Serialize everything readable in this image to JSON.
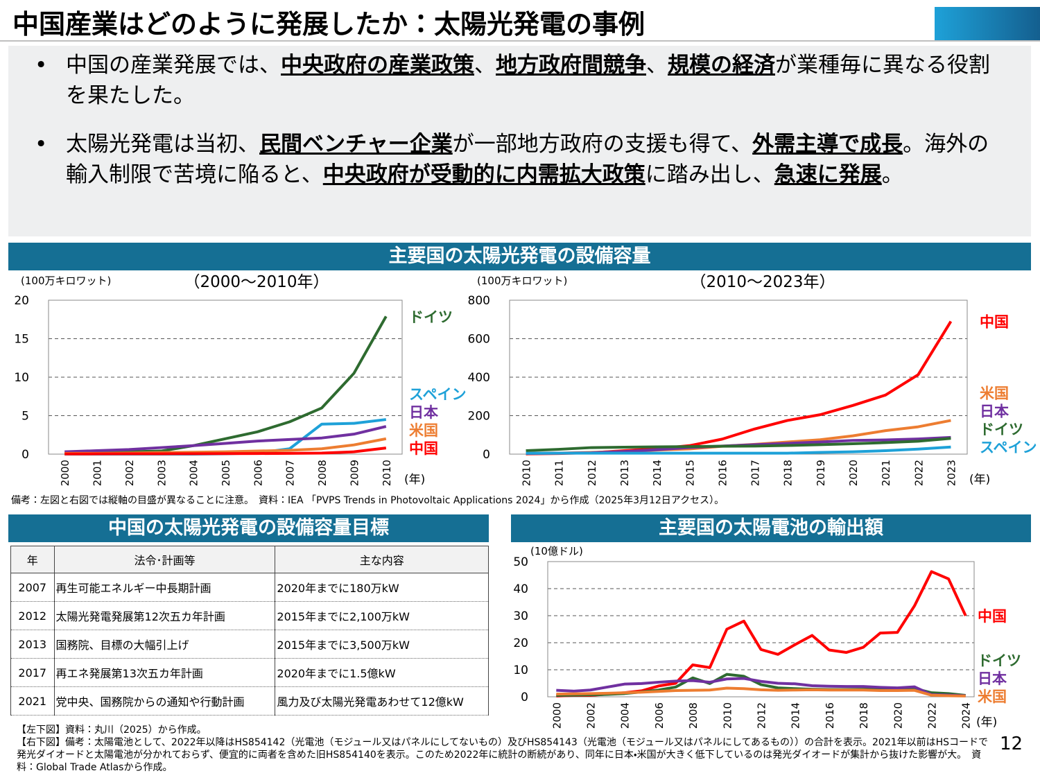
{
  "title": "中国産業はどのように発展したか：太陽光発電の事例",
  "bullets": [
    {
      "segments": [
        {
          "text": "中国の産業発展では、",
          "bold": false
        },
        {
          "text": "中央政府の産業政策",
          "bold": true
        },
        {
          "text": "、",
          "bold": false
        },
        {
          "text": "地方政府間競争",
          "bold": true
        },
        {
          "text": "、",
          "bold": false
        },
        {
          "text": "規模の経済",
          "bold": true
        },
        {
          "text": "が業種毎に異なる役割を果たした。",
          "bold": false
        }
      ]
    },
    {
      "segments": [
        {
          "text": "太陽光発電は当初、",
          "bold": false
        },
        {
          "text": "民間ベンチャー企業",
          "bold": true
        },
        {
          "text": "が一部地方政府の支援も得て、",
          "bold": false
        },
        {
          "text": "外需主導で成長",
          "bold": true
        },
        {
          "text": "。海外の輸入制限で苦境に陥ると、",
          "bold": false
        },
        {
          "text": "中央政府が受動的に内需拡大政策",
          "bold": true
        },
        {
          "text": "に踏み出し、",
          "bold": false
        },
        {
          "text": "急速に発展",
          "bold": true
        },
        {
          "text": "。",
          "bold": false
        }
      ]
    }
  ],
  "sections": [
    "主要国の太陽光発電の設備容量",
    "中国の太陽光発電の設備容量目標",
    "主要国の太陽電池の輸出額"
  ],
  "note": "備考：左図と右図では縦軸の目盛が異なることに注意。　資料：IEA 「PVPS Trends in Photovoltaic Applications 2024」から作成（2025年3月12日アクセス）。",
  "chart_data": [
    {
      "type": "line",
      "title": "（2000～2010年）",
      "unit": "(100万キロワット)",
      "x_unit": "(年)",
      "categories": [
        "2000",
        "2001",
        "2002",
        "2003",
        "2004",
        "2005",
        "2006",
        "2007",
        "2008",
        "2009",
        "2010"
      ],
      "ylim": [
        0,
        20
      ],
      "yticks": [
        0,
        5,
        10,
        15,
        20
      ],
      "grid": true,
      "series": [
        {
          "name": "ドイツ",
          "color": "#2e6b30",
          "values": [
            0.1,
            0.2,
            0.3,
            0.4,
            1.1,
            2.0,
            2.9,
            4.2,
            6.0,
            10.5,
            17.9
          ]
        },
        {
          "name": "スペイン",
          "color": "#1ea1d8",
          "values": [
            0,
            0,
            0,
            0,
            0,
            0.05,
            0.15,
            0.7,
            3.9,
            4.0,
            4.5
          ]
        },
        {
          "name": "日本",
          "color": "#7030a0",
          "values": [
            0.3,
            0.45,
            0.6,
            0.85,
            1.1,
            1.4,
            1.7,
            1.9,
            2.1,
            2.6,
            3.6
          ]
        },
        {
          "name": "米国",
          "color": "#ed7d31",
          "values": [
            0.1,
            0.1,
            0.15,
            0.2,
            0.25,
            0.3,
            0.4,
            0.5,
            0.7,
            1.2,
            2.0
          ]
        },
        {
          "name": "中国",
          "color": "#ff0000",
          "values": [
            0.02,
            0.03,
            0.04,
            0.05,
            0.06,
            0.07,
            0.08,
            0.1,
            0.14,
            0.3,
            0.8
          ]
        }
      ]
    },
    {
      "type": "line",
      "title": "（2010～2023年）",
      "unit": "(100万キロワット)",
      "x_unit": "(年)",
      "categories": [
        "2010",
        "2011",
        "2012",
        "2013",
        "2014",
        "2015",
        "2016",
        "2017",
        "2018",
        "2019",
        "2020",
        "2021",
        "2022",
        "2023"
      ],
      "ylim": [
        0,
        800
      ],
      "yticks": [
        0,
        200,
        400,
        600,
        800
      ],
      "grid": true,
      "series": [
        {
          "name": "中国",
          "color": "#ff0000",
          "values": [
            1,
            3,
            7,
            18,
            28,
            44,
            78,
            131,
            175,
            205,
            253,
            307,
            413,
            690
          ]
        },
        {
          "name": "米国",
          "color": "#ed7d31",
          "values": [
            3,
            5,
            9,
            14,
            21,
            27,
            41,
            51,
            63,
            75,
            95,
            122,
            142,
            175
          ]
        },
        {
          "name": "日本",
          "color": "#7030a0",
          "values": [
            3.6,
            5,
            6.6,
            13.6,
            23,
            34,
            42,
            49,
            56,
            63,
            71,
            74,
            79,
            87
          ]
        },
        {
          "name": "ドイツ",
          "color": "#2e6b30",
          "values": [
            18,
            25,
            34,
            36,
            38,
            39,
            41,
            42,
            45,
            49,
            54,
            60,
            67,
            82
          ]
        },
        {
          "name": "スペイン",
          "color": "#1ea1d8",
          "values": [
            4.5,
            5,
            5,
            5,
            5,
            5,
            5,
            5,
            5,
            9,
            12,
            18,
            26,
            37
          ]
        }
      ]
    },
    {
      "type": "line",
      "unit": "(10億ドル)",
      "x_unit": "(年)",
      "categories": [
        "2000",
        null,
        "2002",
        null,
        "2004",
        null,
        "2006",
        null,
        "2008",
        null,
        "2010",
        null,
        "2012",
        null,
        "2014",
        null,
        "2016",
        null,
        "2018",
        null,
        "2020",
        null,
        "2022",
        null,
        "2024"
      ],
      "ylim": [
        0,
        50
      ],
      "yticks": [
        0,
        10,
        20,
        30,
        40,
        50
      ],
      "grid": true,
      "series": [
        {
          "name": "中国",
          "color": "#ff0000",
          "values": [
            0.3,
            0.5,
            0.5,
            1,
            1.5,
            2.2,
            4,
            5,
            11.8,
            10.8,
            25,
            28,
            17.5,
            15.7,
            19.3,
            22.7,
            17.3,
            16.4,
            18.3,
            23.6,
            23.8,
            33.6,
            46.3,
            43.6,
            30
          ]
        },
        {
          "name": "ドイツ",
          "color": "#2e6b30",
          "values": [
            0.5,
            0.6,
            0.7,
            0.9,
            1.2,
            1.8,
            2.5,
            3.6,
            7,
            4.9,
            8.3,
            7.6,
            4.5,
            3.3,
            3,
            2.8,
            2.7,
            2.7,
            2.8,
            2.9,
            3,
            3.1,
            1.5,
            1.2,
            0.5
          ]
        },
        {
          "name": "日本",
          "color": "#7030a0",
          "values": [
            2.4,
            2.1,
            2.5,
            3.6,
            4.7,
            4.9,
            5.4,
            5.8,
            6,
            5.4,
            6.6,
            6.8,
            5.7,
            5,
            4.8,
            4.1,
            3.9,
            3.8,
            3.8,
            3.5,
            3.3,
            3.7,
            0.8,
            0.6,
            0.4
          ]
        },
        {
          "name": "米国",
          "color": "#ed7d31",
          "values": [
            1,
            1.1,
            1.2,
            1.3,
            1.5,
            1.7,
            2,
            2.3,
            2.4,
            2.5,
            3.2,
            3,
            2.6,
            2.4,
            2.5,
            2.6,
            2.5,
            2.5,
            2.5,
            2.3,
            2.3,
            2.4,
            0.6,
            0.4,
            0.3
          ]
        }
      ]
    }
  ],
  "table": {
    "header": [
      "年",
      "法令･計画等",
      "主な内容"
    ],
    "rows": [
      [
        "2007",
        "再生可能エネルギー中長期計画",
        "2020年までに180万kW"
      ],
      [
        "2012",
        "太陽光発電発展第12次五カ年計画",
        "2015年までに2,100万kW"
      ],
      [
        "2013",
        "国務院、目標の大幅引上げ",
        "2015年までに3,500万kW"
      ],
      [
        "2017",
        "再エネ発展第13次五カ年計画",
        "2020年までに1.5億kW"
      ],
      [
        "2021",
        "党中央、国務院からの通知や行動計画",
        "風力及び太陽光発電あわせて12億kW"
      ]
    ]
  },
  "footnotes": [
    "【左下図】資料：丸川（2025）から作成。",
    "【右下図】備考：太陽電池として、2022年以降はHS854142（光電池（モジュール又はパネルにしてないもの）及びHS854143（光電池（モジュール又はパネルにしてあるもの））の合計を表示。2021年以前はHSコードで発光ダイオードと太陽電池が分かれておらず、便宜的に両者を含めた旧HS854140を表示。このため2022年に統計の断続があり、同年に日本・米国が大きく低下しているのは発光ダイオードが集計から抜けた影響が大。　資料：Global Trade Atlasから作成。"
  ],
  "page_number": "12"
}
